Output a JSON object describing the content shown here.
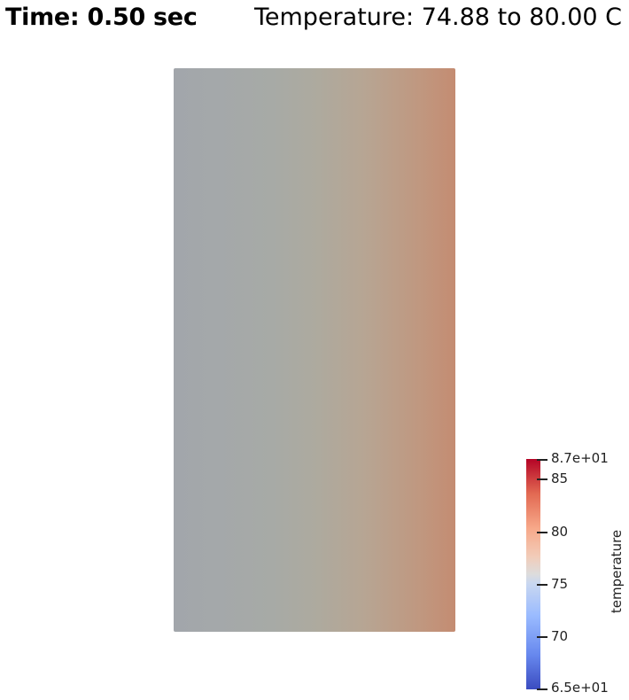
{
  "header": {
    "time_label": "Time: 0.50 sec",
    "temperature_label": "Temperature: 74.88 to 80.00 C"
  },
  "field": {
    "left_color": "#a2a6ab",
    "right_color": "#c48c72"
  },
  "colorbar": {
    "title": "temperature",
    "max_label": "8.7e+01",
    "min_label": "6.5e+01",
    "ticks": [
      "85",
      "80",
      "75",
      "70"
    ],
    "range": [
      65,
      87
    ],
    "colormap": "coolwarm",
    "low_color": "#3b4cc0",
    "mid_color": "#dddcdc",
    "high_color": "#b40426"
  }
}
